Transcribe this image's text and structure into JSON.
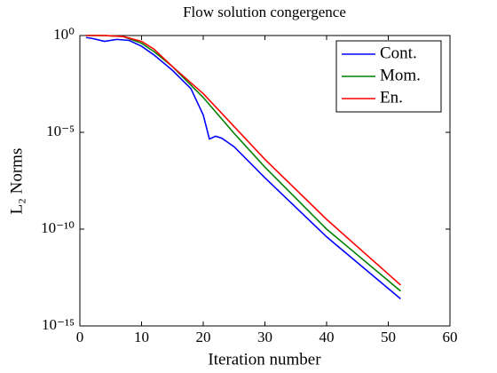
{
  "chart_data": {
    "type": "line",
    "title": "Flow solution congergence",
    "xlabel": "Iteration number",
    "ylabel": "L₂ Norms",
    "xlim": [
      0,
      60
    ],
    "xticks": [
      0,
      10,
      20,
      30,
      40,
      50,
      60
    ],
    "ylim": [
      1e-15,
      1
    ],
    "yticks": [
      {
        "value": 1e-15,
        "label": "10⁻¹⁵"
      },
      {
        "value": 1e-10,
        "label": "10⁻¹⁰"
      },
      {
        "value": 1e-05,
        "label": "10⁻⁵"
      },
      {
        "value": 1,
        "label": "10⁰"
      }
    ],
    "log_y": true,
    "grid": false,
    "legend": "upper right",
    "series": [
      {
        "name": "Cont.",
        "color": "#0000ff",
        "x": [
          1,
          2,
          4,
          6,
          8,
          10,
          12,
          15,
          18,
          20,
          21,
          22,
          23,
          25,
          30,
          40,
          52
        ],
        "values": [
          0.79,
          0.71,
          0.5,
          0.63,
          0.56,
          0.28,
          0.1,
          0.016,
          0.0018,
          7.9e-05,
          4.5e-06,
          6.3e-06,
          5e-06,
          1.8e-06,
          4.5e-08,
          4e-11,
          2.5e-14
        ]
      },
      {
        "name": "Mom.",
        "color": "#008000",
        "x": [
          1,
          4,
          7,
          10,
          12,
          15,
          20,
          25,
          30,
          40,
          52
        ],
        "values": [
          1,
          1,
          0.89,
          0.4,
          0.15,
          0.025,
          0.00063,
          8.9e-06,
          1.6e-07,
          1e-10,
          6.3e-14
        ]
      },
      {
        "name": "En.",
        "color": "#ff0000",
        "x": [
          1,
          4,
          7,
          10,
          12,
          15,
          20,
          25,
          30,
          40,
          52
        ],
        "values": [
          1,
          1,
          0.89,
          0.5,
          0.2,
          0.025,
          0.001,
          2e-05,
          4e-07,
          3.2e-10,
          1.3e-13
        ]
      }
    ]
  }
}
